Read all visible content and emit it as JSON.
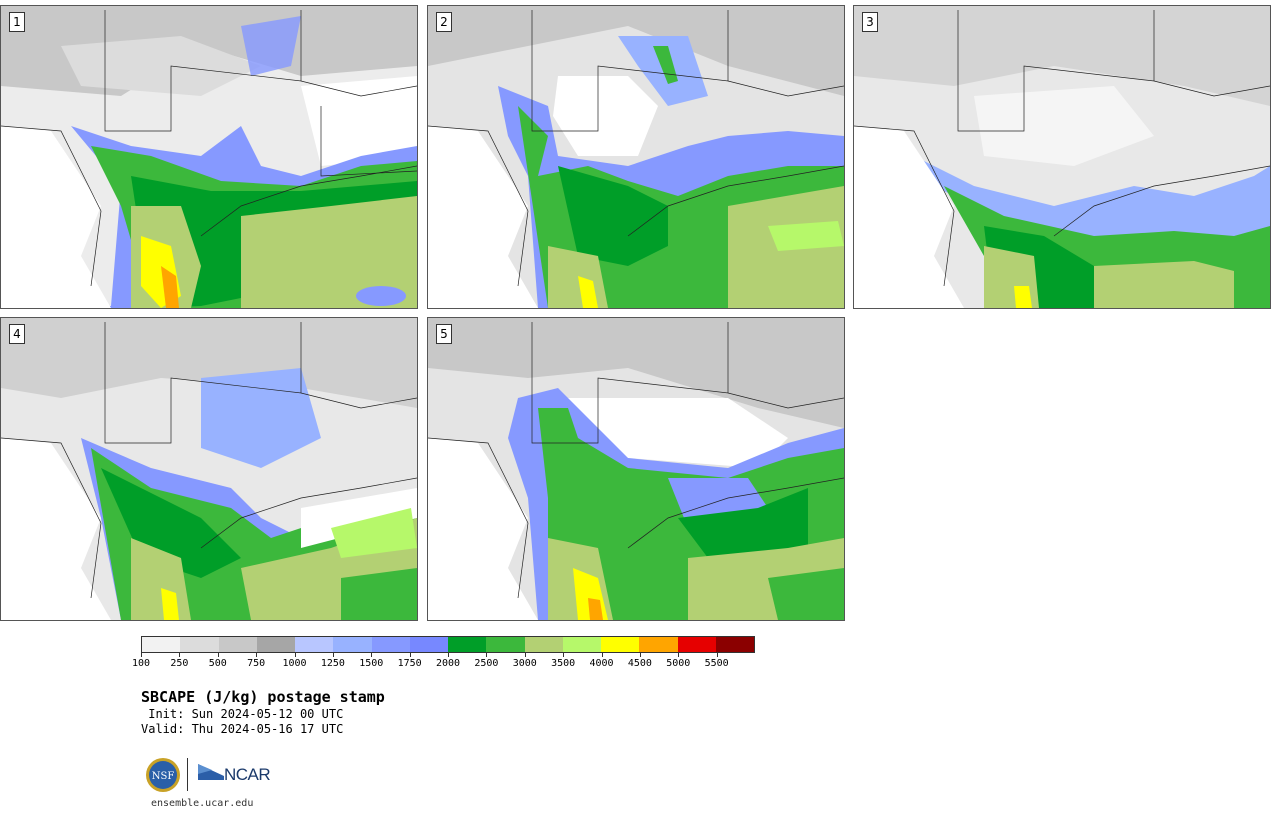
{
  "panels": [
    {
      "number": "1"
    },
    {
      "number": "2"
    },
    {
      "number": "3"
    },
    {
      "number": "4"
    },
    {
      "number": "5"
    }
  ],
  "colorbar": {
    "colors": [
      "#f2f2f2",
      "#dcdcdc",
      "#c8c8c8",
      "#a6a6a6",
      "#b8c6ff",
      "#98b2ff",
      "#8699ff",
      "#7788ff",
      "#009e28",
      "#3cb83c",
      "#b3d073",
      "#b6f86a",
      "#ffff00",
      "#ffa500",
      "#e60000",
      "#8b0000"
    ],
    "ticks": [
      "100",
      "250",
      "500",
      "750",
      "1000",
      "1250",
      "1500",
      "1750",
      "2000",
      "2500",
      "3000",
      "3500",
      "4000",
      "4500",
      "5000",
      "5500"
    ]
  },
  "title": "SBCAPE (J/kg) postage stamp",
  "init": " Init: Sun 2024-05-12 00 UTC",
  "valid": "Valid: Thu 2024-05-16 17 UTC",
  "logos": {
    "nsf": "NSF",
    "ncar": "NCAR"
  },
  "site": "ensemble.ucar.edu"
}
